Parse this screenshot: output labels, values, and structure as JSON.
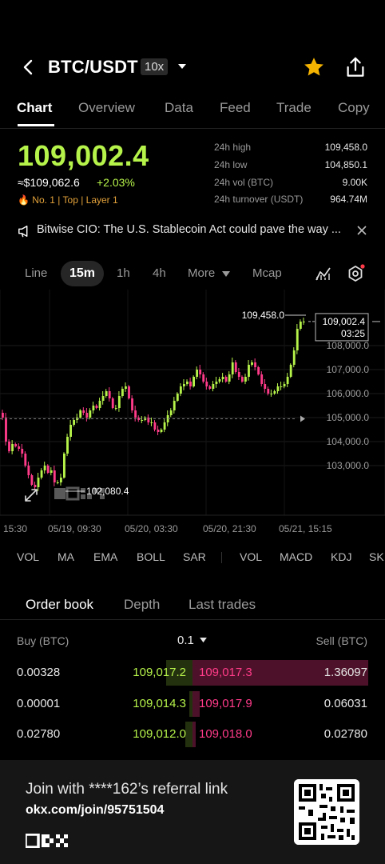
{
  "header": {
    "pair": "BTC/USDT",
    "leverage": "10x",
    "icons": [
      "back-chevron-icon",
      "dropdown-caret-icon",
      "star-icon",
      "share-icon"
    ]
  },
  "tabs": [
    "Chart",
    "Overview",
    "Data",
    "Feed",
    "Trade",
    "Copy"
  ],
  "active_tab": "Chart",
  "price": {
    "last": "109,002.4",
    "usd": "≈$109,062.6",
    "change": "+2.03%",
    "tags": "🔥 No. 1  |  Top  |  Layer 1"
  },
  "stats": [
    {
      "label": "24h high",
      "value": "109,458.0"
    },
    {
      "label": "24h low",
      "value": "104,850.1"
    },
    {
      "label": "24h vol (BTC)",
      "value": "9.00K"
    },
    {
      "label": "24h turnover (USDT)",
      "value": "964.74M"
    }
  ],
  "news": {
    "text": "Bitwise CIO: The U.S. Stablecoin Act could pave the way ..."
  },
  "intervals": {
    "line": "Line",
    "m15": "15m",
    "h1": "1h",
    "h4": "4h",
    "more": "More",
    "mcap": "Mcap"
  },
  "chart_data": {
    "type": "candlestick",
    "price_labels": [
      "108,000.0",
      "107,000.0",
      "106,000.0",
      "105,000.0",
      "104,000.0",
      "103,000.0"
    ],
    "price_ticks": [
      108000,
      107000,
      106000,
      105000,
      104000,
      103000
    ],
    "time_labels": [
      "15:30",
      "05/19, 09:30",
      "05/20, 03:30",
      "05/20, 21:30",
      "05/21, 15:15"
    ],
    "high_marker": "109,458.0",
    "low_marker": "102,080.4",
    "last_price": "109,002.4",
    "countdown": "03:25",
    "ylim": [
      102080.4,
      109458
    ],
    "path": [
      105200,
      105000,
      104000,
      103600,
      103900,
      103800,
      103700,
      103500,
      103000,
      102600,
      102200,
      102100,
      102500,
      102800,
      103000,
      102700,
      102800,
      102300,
      102300,
      102500,
      103500,
      104200,
      104700,
      104900,
      105000,
      105300,
      105200,
      105000,
      105300,
      105500,
      105400,
      105700,
      105900,
      106100,
      105800,
      105400,
      105400,
      105900,
      106200,
      106300,
      105800,
      105300,
      105000,
      104900,
      104900,
      105000,
      104800,
      104800,
      104500,
      104400,
      104500,
      104800,
      105100,
      105300,
      105700,
      106000,
      106300,
      106400,
      106500,
      106300,
      106700,
      107000,
      106800,
      106500,
      106300,
      106200,
      106400,
      106500,
      106600,
      106700,
      106500,
      106800,
      107300,
      106900,
      106700,
      106500,
      106700,
      107200,
      107300,
      107100,
      106800,
      106400,
      106200,
      106000,
      106000,
      106100,
      106300,
      106300,
      106400,
      106700,
      107200,
      107800,
      108700,
      109000,
      109002.4
    ]
  },
  "indicators": [
    "VOL",
    "MA",
    "EMA",
    "BOLL",
    "SAR",
    "VOL",
    "MACD",
    "KDJ",
    "SK"
  ],
  "orderbook": {
    "tabs": [
      "Order book",
      "Depth",
      "Last trades"
    ],
    "buy_label": "Buy (BTC)",
    "step": "0.1",
    "sell_label": "Sell (BTC)",
    "rows": [
      {
        "buy_qty": "0.00328",
        "bid": "109,017.2",
        "ask": "109,017.3",
        "sell_qty": "1.36097",
        "bid_depth": 0.15,
        "ask_depth": 1.0
      },
      {
        "buy_qty": "0.00001",
        "bid": "109,014.3",
        "ask": "109,017.9",
        "sell_qty": "0.06031",
        "bid_depth": 0.02,
        "ask_depth": 0.04
      },
      {
        "buy_qty": "0.02780",
        "bid": "109,012.0",
        "ask": "109,018.0",
        "sell_qty": "0.02780",
        "bid_depth": 0.04,
        "ask_depth": 0.02
      }
    ]
  },
  "footer": {
    "referral_text": "Join with ****162’s referral link",
    "url": "okx.com/join/95751504"
  },
  "colors": {
    "up": "#b6f34a",
    "down": "#ff3b89",
    "background": "#000000"
  }
}
